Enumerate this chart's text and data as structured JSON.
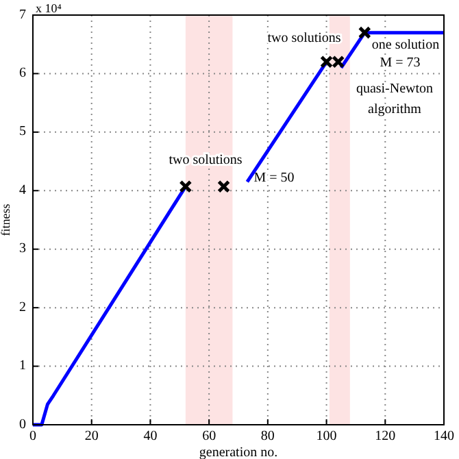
{
  "chart_data": {
    "type": "line",
    "xlabel": "generation no.",
    "ylabel": "fitness",
    "xlim": [
      0,
      140
    ],
    "ylim": [
      0,
      7
    ],
    "xticks": [
      0,
      20,
      40,
      60,
      80,
      100,
      120,
      140
    ],
    "yticks": [
      0,
      1,
      2,
      3,
      4,
      5,
      6,
      7
    ],
    "grid": true,
    "series": [
      {
        "type": "line",
        "color": "#0000ff",
        "marker": "none",
        "x": [
          0,
          3,
          5,
          7,
          52,
          null,
          73,
          100,
          null,
          105,
          113,
          140
        ],
        "values": [
          0,
          0,
          0.35,
          0.5,
          4.07,
          null,
          4.15,
          6.2,
          null,
          6.1,
          6.7,
          6.7
        ]
      },
      {
        "type": "scatter",
        "color": "#000000",
        "marker": "cross",
        "x": [
          52,
          65,
          100,
          104,
          113
        ],
        "values": [
          4.07,
          4.07,
          6.2,
          6.2,
          6.7
        ]
      }
    ],
    "bands": [
      {
        "axis": "x",
        "from": 52,
        "to": 68,
        "color": "#fde3e3"
      },
      {
        "axis": "x",
        "from": 101,
        "to": 108,
        "color": "#fde3e3"
      }
    ],
    "annotations": [
      "x 10⁴",
      "two solutions",
      "M = 50",
      "two solutions",
      "one solution",
      "M = 73",
      "quasi-Newton",
      "algorithm"
    ]
  }
}
